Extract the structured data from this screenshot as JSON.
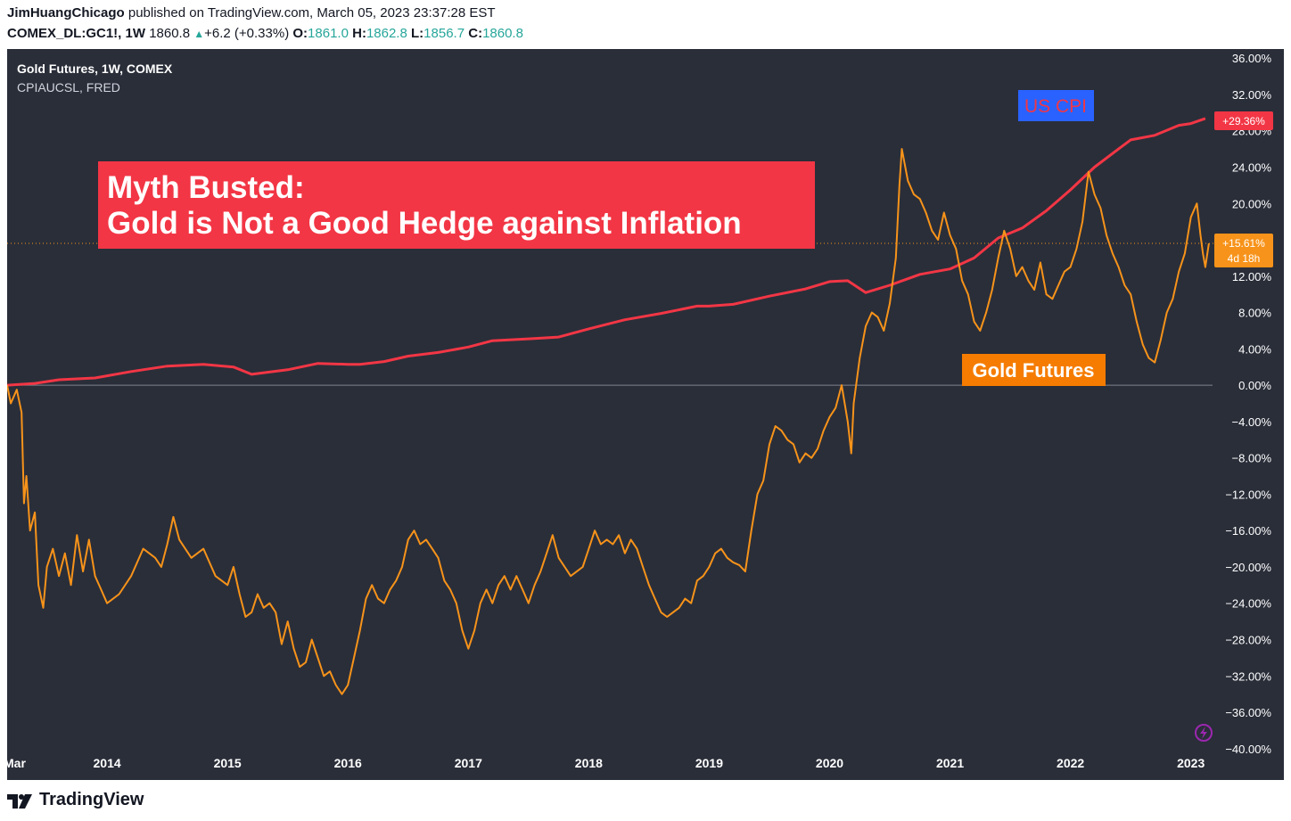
{
  "header": {
    "author": "JimHuangChicago",
    "published": "published on TradingView.com, March 05, 2023 23:37:28 EST",
    "symbol": "COMEX_DL:GC1!, 1W",
    "price": "1860.8",
    "change": "+6.2 (+0.33%)",
    "o_label": "O:",
    "o_value": "1861.0",
    "h_label": "H:",
    "h_value": "1862.8",
    "l_label": "L:",
    "l_value": "1856.7",
    "c_label": "C:",
    "c_value": "1860.8"
  },
  "legend": {
    "line1": "Gold Futures, 1W, COMEX",
    "line2": "CPIAUCSL, FRED"
  },
  "annotations": {
    "myth_line1": "Myth Busted:",
    "myth_line2": "Gold is Not a Good Hedge against Inflation",
    "cpi_label": "US CPI",
    "gold_label": "Gold Futures"
  },
  "price_tags": {
    "cpi": "+29.36%",
    "gold": "+15.61%",
    "gold_countdown": "4d 18h"
  },
  "footer": {
    "brand": "TradingView"
  },
  "colors": {
    "background": "#2a2e39",
    "cpi": "#f23645",
    "gold": "#f7931a",
    "cpi_label_bg": "#2962ff",
    "myth_bg": "#f23645",
    "gold_label_bg": "#f57c00"
  },
  "chart_data": {
    "type": "line",
    "xlim": [
      2013.17,
      2023.18
    ],
    "ylim": [
      -41,
      37
    ],
    "y_ticks": [
      36,
      32,
      28,
      24,
      20,
      16,
      12,
      8,
      4,
      0,
      -4,
      -8,
      -12,
      -16,
      -20,
      -24,
      -28,
      -32,
      -36,
      -40
    ],
    "y_tick_labels": [
      "36.00%",
      "32.00%",
      "28.00%",
      "24.00%",
      "20.00%",
      "16.00%",
      "12.00%",
      "8.00%",
      "4.00%",
      "0.00%",
      "−4.00%",
      "−8.00%",
      "−12.00%",
      "−16.00%",
      "−20.00%",
      "−24.00%",
      "−28.00%",
      "−32.00%",
      "−36.00%",
      "−40.00%"
    ],
    "x_ticks": [
      {
        "x": 2013.17,
        "label": "Mar"
      },
      {
        "x": 2014.0,
        "label": "2014"
      },
      {
        "x": 2015.0,
        "label": "2015"
      },
      {
        "x": 2016.0,
        "label": "2016"
      },
      {
        "x": 2017.0,
        "label": "2017"
      },
      {
        "x": 2018.0,
        "label": "2018"
      },
      {
        "x": 2019.0,
        "label": "2019"
      },
      {
        "x": 2020.0,
        "label": "2020"
      },
      {
        "x": 2021.0,
        "label": "2021"
      },
      {
        "x": 2022.0,
        "label": "2022"
      },
      {
        "x": 2023.0,
        "label": "2023"
      }
    ],
    "zero_line": 0,
    "series": [
      {
        "name": "US CPI",
        "color": "#f23645",
        "points": [
          [
            2013.17,
            0.0
          ],
          [
            2013.4,
            0.2
          ],
          [
            2013.6,
            0.6
          ],
          [
            2013.9,
            0.8
          ],
          [
            2014.2,
            1.5
          ],
          [
            2014.5,
            2.1
          ],
          [
            2014.8,
            2.3
          ],
          [
            2015.05,
            2.0
          ],
          [
            2015.2,
            1.2
          ],
          [
            2015.5,
            1.7
          ],
          [
            2015.75,
            2.4
          ],
          [
            2016.0,
            2.3
          ],
          [
            2016.1,
            2.3
          ],
          [
            2016.3,
            2.6
          ],
          [
            2016.5,
            3.2
          ],
          [
            2016.75,
            3.6
          ],
          [
            2017.0,
            4.2
          ],
          [
            2017.2,
            4.9
          ],
          [
            2017.5,
            5.1
          ],
          [
            2017.75,
            5.3
          ],
          [
            2018.0,
            6.2
          ],
          [
            2018.3,
            7.2
          ],
          [
            2018.6,
            7.9
          ],
          [
            2018.9,
            8.7
          ],
          [
            2019.0,
            8.7
          ],
          [
            2019.2,
            8.9
          ],
          [
            2019.5,
            9.8
          ],
          [
            2019.8,
            10.6
          ],
          [
            2020.0,
            11.4
          ],
          [
            2020.15,
            11.5
          ],
          [
            2020.3,
            10.2
          ],
          [
            2020.5,
            11.0
          ],
          [
            2020.75,
            12.2
          ],
          [
            2021.0,
            12.8
          ],
          [
            2021.2,
            14.0
          ],
          [
            2021.4,
            16.2
          ],
          [
            2021.6,
            17.3
          ],
          [
            2021.8,
            19.2
          ],
          [
            2022.0,
            21.5
          ],
          [
            2022.2,
            24.0
          ],
          [
            2022.4,
            26.0
          ],
          [
            2022.5,
            27.0
          ],
          [
            2022.7,
            27.5
          ],
          [
            2022.9,
            28.6
          ],
          [
            2023.0,
            28.8
          ],
          [
            2023.12,
            29.36
          ]
        ]
      },
      {
        "name": "Gold Futures",
        "color": "#f7931a",
        "points": [
          [
            2013.17,
            0.0
          ],
          [
            2013.2,
            -2.0
          ],
          [
            2013.25,
            -0.5
          ],
          [
            2013.29,
            -3.0
          ],
          [
            2013.31,
            -13.0
          ],
          [
            2013.33,
            -10.0
          ],
          [
            2013.36,
            -16.0
          ],
          [
            2013.4,
            -14.0
          ],
          [
            2013.43,
            -22.0
          ],
          [
            2013.47,
            -24.5
          ],
          [
            2013.5,
            -20.0
          ],
          [
            2013.55,
            -18.0
          ],
          [
            2013.6,
            -21.0
          ],
          [
            2013.65,
            -18.5
          ],
          [
            2013.7,
            -22.0
          ],
          [
            2013.75,
            -16.5
          ],
          [
            2013.8,
            -20.5
          ],
          [
            2013.85,
            -17.0
          ],
          [
            2013.9,
            -21.0
          ],
          [
            2013.95,
            -22.5
          ],
          [
            2014.0,
            -24.0
          ],
          [
            2014.1,
            -23.0
          ],
          [
            2014.2,
            -21.0
          ],
          [
            2014.3,
            -18.0
          ],
          [
            2014.35,
            -18.5
          ],
          [
            2014.4,
            -19.0
          ],
          [
            2014.45,
            -20.0
          ],
          [
            2014.5,
            -17.5
          ],
          [
            2014.55,
            -14.5
          ],
          [
            2014.6,
            -17.0
          ],
          [
            2014.7,
            -19.0
          ],
          [
            2014.8,
            -18.0
          ],
          [
            2014.9,
            -21.0
          ],
          [
            2015.0,
            -22.0
          ],
          [
            2015.05,
            -20.0
          ],
          [
            2015.1,
            -23.0
          ],
          [
            2015.15,
            -25.5
          ],
          [
            2015.2,
            -25.0
          ],
          [
            2015.25,
            -23.0
          ],
          [
            2015.3,
            -24.5
          ],
          [
            2015.35,
            -24.0
          ],
          [
            2015.4,
            -25.0
          ],
          [
            2015.45,
            -28.5
          ],
          [
            2015.5,
            -26.0
          ],
          [
            2015.55,
            -29.0
          ],
          [
            2015.6,
            -31.0
          ],
          [
            2015.65,
            -30.5
          ],
          [
            2015.7,
            -28.0
          ],
          [
            2015.75,
            -30.0
          ],
          [
            2015.8,
            -32.0
          ],
          [
            2015.85,
            -31.5
          ],
          [
            2015.9,
            -33.0
          ],
          [
            2015.95,
            -34.0
          ],
          [
            2016.0,
            -33.0
          ],
          [
            2016.05,
            -30.0
          ],
          [
            2016.1,
            -27.0
          ],
          [
            2016.15,
            -23.5
          ],
          [
            2016.2,
            -22.0
          ],
          [
            2016.25,
            -23.5
          ],
          [
            2016.3,
            -24.0
          ],
          [
            2016.35,
            -22.5
          ],
          [
            2016.4,
            -21.5
          ],
          [
            2016.45,
            -20.0
          ],
          [
            2016.5,
            -17.0
          ],
          [
            2016.55,
            -16.0
          ],
          [
            2016.6,
            -17.5
          ],
          [
            2016.65,
            -17.0
          ],
          [
            2016.7,
            -18.0
          ],
          [
            2016.75,
            -19.0
          ],
          [
            2016.8,
            -21.5
          ],
          [
            2016.85,
            -22.5
          ],
          [
            2016.9,
            -24.0
          ],
          [
            2016.95,
            -27.0
          ],
          [
            2017.0,
            -29.0
          ],
          [
            2017.05,
            -27.0
          ],
          [
            2017.1,
            -24.0
          ],
          [
            2017.15,
            -22.5
          ],
          [
            2017.2,
            -24.0
          ],
          [
            2017.25,
            -22.0
          ],
          [
            2017.3,
            -21.0
          ],
          [
            2017.35,
            -22.5
          ],
          [
            2017.4,
            -21.0
          ],
          [
            2017.45,
            -22.5
          ],
          [
            2017.5,
            -24.0
          ],
          [
            2017.55,
            -22.0
          ],
          [
            2017.6,
            -20.5
          ],
          [
            2017.65,
            -18.5
          ],
          [
            2017.7,
            -16.5
          ],
          [
            2017.75,
            -19.0
          ],
          [
            2017.8,
            -20.0
          ],
          [
            2017.85,
            -21.0
          ],
          [
            2017.9,
            -20.5
          ],
          [
            2017.95,
            -20.0
          ],
          [
            2018.0,
            -18.0
          ],
          [
            2018.05,
            -16.0
          ],
          [
            2018.1,
            -17.5
          ],
          [
            2018.15,
            -17.0
          ],
          [
            2018.2,
            -17.5
          ],
          [
            2018.25,
            -16.5
          ],
          [
            2018.3,
            -18.5
          ],
          [
            2018.35,
            -17.0
          ],
          [
            2018.4,
            -18.0
          ],
          [
            2018.45,
            -20.0
          ],
          [
            2018.5,
            -22.0
          ],
          [
            2018.55,
            -23.5
          ],
          [
            2018.6,
            -25.0
          ],
          [
            2018.65,
            -25.5
          ],
          [
            2018.7,
            -25.0
          ],
          [
            2018.75,
            -24.5
          ],
          [
            2018.8,
            -23.5
          ],
          [
            2018.85,
            -24.0
          ],
          [
            2018.9,
            -21.5
          ],
          [
            2018.95,
            -21.0
          ],
          [
            2019.0,
            -20.0
          ],
          [
            2019.05,
            -18.5
          ],
          [
            2019.1,
            -18.0
          ],
          [
            2019.15,
            -19.0
          ],
          [
            2019.2,
            -19.5
          ],
          [
            2019.25,
            -19.8
          ],
          [
            2019.3,
            -20.5
          ],
          [
            2019.35,
            -16.0
          ],
          [
            2019.4,
            -12.0
          ],
          [
            2019.45,
            -10.5
          ],
          [
            2019.5,
            -6.5
          ],
          [
            2019.55,
            -4.5
          ],
          [
            2019.6,
            -5.0
          ],
          [
            2019.65,
            -6.0
          ],
          [
            2019.7,
            -6.5
          ],
          [
            2019.75,
            -8.5
          ],
          [
            2019.8,
            -7.5
          ],
          [
            2019.85,
            -8.0
          ],
          [
            2019.9,
            -7.0
          ],
          [
            2019.95,
            -5.0
          ],
          [
            2020.0,
            -3.5
          ],
          [
            2020.05,
            -2.5
          ],
          [
            2020.1,
            0.0
          ],
          [
            2020.15,
            -4.0
          ],
          [
            2020.18,
            -7.5
          ],
          [
            2020.2,
            -2.0
          ],
          [
            2020.25,
            3.0
          ],
          [
            2020.3,
            6.5
          ],
          [
            2020.35,
            8.0
          ],
          [
            2020.4,
            7.5
          ],
          [
            2020.45,
            6.0
          ],
          [
            2020.5,
            9.0
          ],
          [
            2020.55,
            14.0
          ],
          [
            2020.58,
            22.0
          ],
          [
            2020.6,
            26.0
          ],
          [
            2020.65,
            22.5
          ],
          [
            2020.7,
            21.0
          ],
          [
            2020.75,
            20.5
          ],
          [
            2020.8,
            19.0
          ],
          [
            2020.85,
            17.0
          ],
          [
            2020.9,
            16.0
          ],
          [
            2020.95,
            19.0
          ],
          [
            2021.0,
            16.5
          ],
          [
            2021.05,
            15.0
          ],
          [
            2021.1,
            11.5
          ],
          [
            2021.15,
            10.0
          ],
          [
            2021.2,
            7.0
          ],
          [
            2021.25,
            6.0
          ],
          [
            2021.3,
            8.0
          ],
          [
            2021.35,
            10.5
          ],
          [
            2021.4,
            14.0
          ],
          [
            2021.45,
            17.0
          ],
          [
            2021.5,
            15.0
          ],
          [
            2021.55,
            12.0
          ],
          [
            2021.6,
            13.0
          ],
          [
            2021.65,
            11.5
          ],
          [
            2021.7,
            10.5
          ],
          [
            2021.75,
            13.5
          ],
          [
            2021.8,
            10.0
          ],
          [
            2021.85,
            9.5
          ],
          [
            2021.9,
            11.0
          ],
          [
            2021.95,
            12.5
          ],
          [
            2022.0,
            13.0
          ],
          [
            2022.05,
            15.0
          ],
          [
            2022.1,
            18.0
          ],
          [
            2022.15,
            23.5
          ],
          [
            2022.2,
            21.0
          ],
          [
            2022.25,
            19.5
          ],
          [
            2022.3,
            16.5
          ],
          [
            2022.35,
            14.5
          ],
          [
            2022.4,
            13.0
          ],
          [
            2022.45,
            11.0
          ],
          [
            2022.5,
            10.0
          ],
          [
            2022.55,
            7.0
          ],
          [
            2022.6,
            4.5
          ],
          [
            2022.65,
            3.0
          ],
          [
            2022.7,
            2.5
          ],
          [
            2022.75,
            5.0
          ],
          [
            2022.8,
            8.0
          ],
          [
            2022.85,
            9.5
          ],
          [
            2022.9,
            12.5
          ],
          [
            2022.95,
            14.5
          ],
          [
            2023.0,
            18.5
          ],
          [
            2023.05,
            20.0
          ],
          [
            2023.08,
            16.5
          ],
          [
            2023.1,
            14.5
          ],
          [
            2023.12,
            13.0
          ],
          [
            2023.15,
            15.61
          ]
        ]
      }
    ]
  }
}
